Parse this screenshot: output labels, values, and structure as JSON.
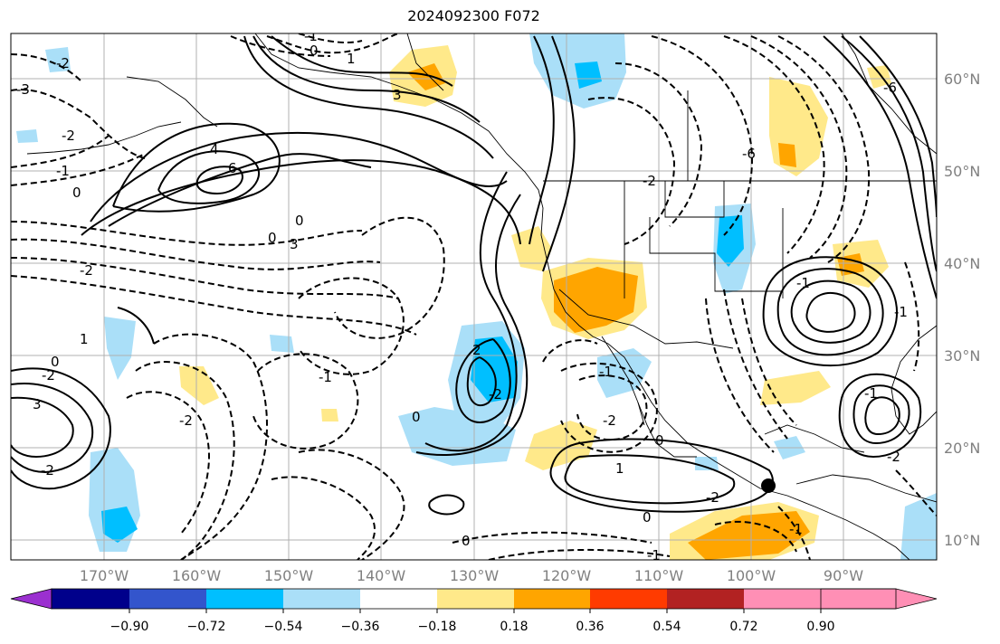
{
  "title": "2024092300 F072",
  "map": {
    "lon_labels": [
      "170°W",
      "160°W",
      "150°W",
      "140°W",
      "130°W",
      "120°W",
      "110°W",
      "100°W",
      "90°W"
    ],
    "lat_labels": [
      "60°N",
      "50°N",
      "40°N",
      "30°N",
      "20°N",
      "10°N"
    ],
    "contour_labels": [
      "0",
      "-1",
      "3",
      "-2",
      "-1",
      "0",
      "6",
      "4",
      "-3",
      "-2",
      "0",
      "1",
      "0",
      "-2",
      "3",
      "-2",
      "1",
      "-1",
      "-2",
      "2",
      "-2",
      "0",
      "-1",
      "-2",
      "0",
      "1",
      "-2",
      "-2",
      "0",
      "-1",
      "-1",
      "-6",
      "-6",
      "-2",
      "-1",
      "-1",
      "0",
      "3",
      "-1",
      "-2",
      "0"
    ],
    "marker": "circle"
  },
  "colorbar": {
    "ticks": [
      "−0.90",
      "−0.72",
      "−0.54",
      "−0.36",
      "−0.18",
      "0.18",
      "0.36",
      "0.54",
      "0.72",
      "0.90"
    ],
    "colors": [
      "#9b30d0",
      "#00008b",
      "#3355cc",
      "#00bfff",
      "#aadff8",
      "#ffffff",
      "#ffe98a",
      "#ffa500",
      "#ff3b00",
      "#b22222",
      "#ff8fb5"
    ]
  }
}
